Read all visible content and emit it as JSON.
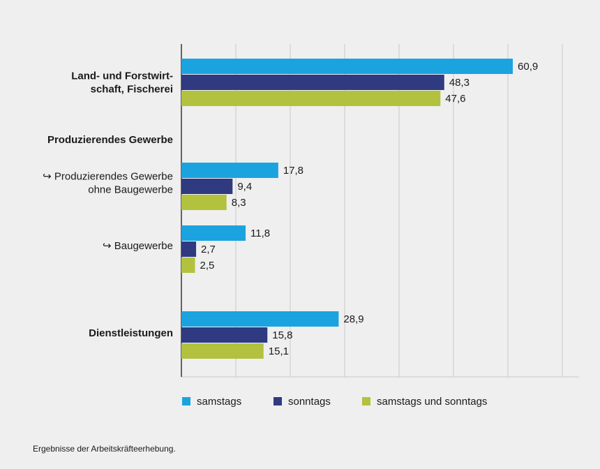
{
  "chart_data": {
    "type": "bar",
    "orientation": "horizontal",
    "categories": [
      {
        "label": "Land- und Forstwirt-\nschaft, Fischerei",
        "bold": true,
        "has_bars": true
      },
      {
        "label": "Produzierendes Gewerbe",
        "bold": true,
        "has_bars": false
      },
      {
        "label": "↪ Produzierendes Gewerbe\nohne Baugewerbe",
        "bold": false,
        "has_bars": true
      },
      {
        "label": "↪ Baugewerbe",
        "bold": false,
        "has_bars": true
      },
      {
        "label": "Dienstleistungen",
        "bold": true,
        "has_bars": true
      }
    ],
    "series": [
      {
        "name": "samstags",
        "color": "#1ba3e0",
        "values": [
          60.9,
          null,
          17.8,
          11.8,
          28.9
        ],
        "labels": [
          "60,9",
          "",
          "17,8",
          "11,8",
          "28,9"
        ]
      },
      {
        "name": "sonntags",
        "color": "#2f3a80",
        "values": [
          48.3,
          null,
          9.4,
          2.7,
          15.8
        ],
        "labels": [
          "48,3",
          "",
          "9,4",
          "2,7",
          "15,8"
        ]
      },
      {
        "name": "samstags und sonntags",
        "color": "#b2c23e",
        "values": [
          47.6,
          null,
          8.3,
          2.5,
          15.1
        ],
        "labels": [
          "47,6",
          "",
          "8,3",
          "2,5",
          "15,1"
        ]
      }
    ],
    "xlim": [
      0,
      70
    ],
    "grid": true,
    "legend_position": "bottom"
  },
  "footnote": "Ergebnisse der Arbeitskräfteerhebung."
}
